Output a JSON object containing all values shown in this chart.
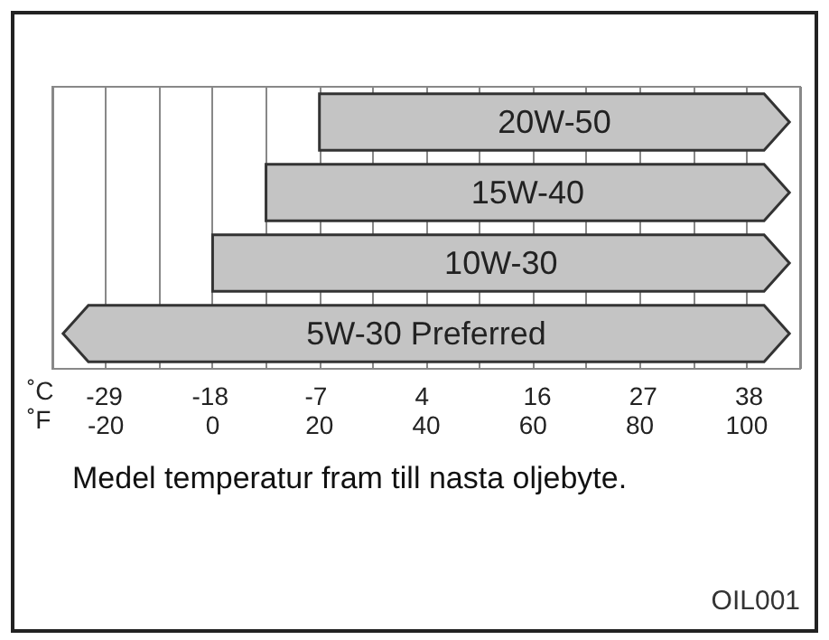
{
  "chart_data": {
    "type": "bar",
    "orientation": "horizontal",
    "categories": [
      "20W-50",
      "15W-40",
      "10W-30",
      "5W-30 Preferred"
    ],
    "base": [
      20,
      10,
      0,
      -28
    ],
    "values": [
      88,
      98,
      108,
      136
    ],
    "color": "#c4c4c4",
    "xlim": [
      -30,
      110
    ],
    "xticks": [
      {
        "value": -30,
        "label": null
      },
      -20,
      {
        "value": -10,
        "label": null
      },
      0,
      {
        "value": 10,
        "label": null
      },
      20,
      {
        "value": 30,
        "label": null
      },
      40,
      {
        "value": 50,
        "label": null
      },
      60,
      {
        "value": 70,
        "label": null
      },
      80,
      {
        "value": 90,
        "label": null
      },
      100,
      {
        "value": 110,
        "label": null
      }
    ],
    "xlabel": "˚F",
    "x2lim": [
      -34.4,
      43.3
    ],
    "x2ticks": [
      -29,
      -18,
      -7,
      4,
      16,
      27,
      38
    ],
    "x2label": "˚C",
    "grid": "x",
    "tick_labels": "x",
    "annotations": [
      "Medel temperatur fram till nasta oljebyte.",
      "OIL001"
    ]
  }
}
